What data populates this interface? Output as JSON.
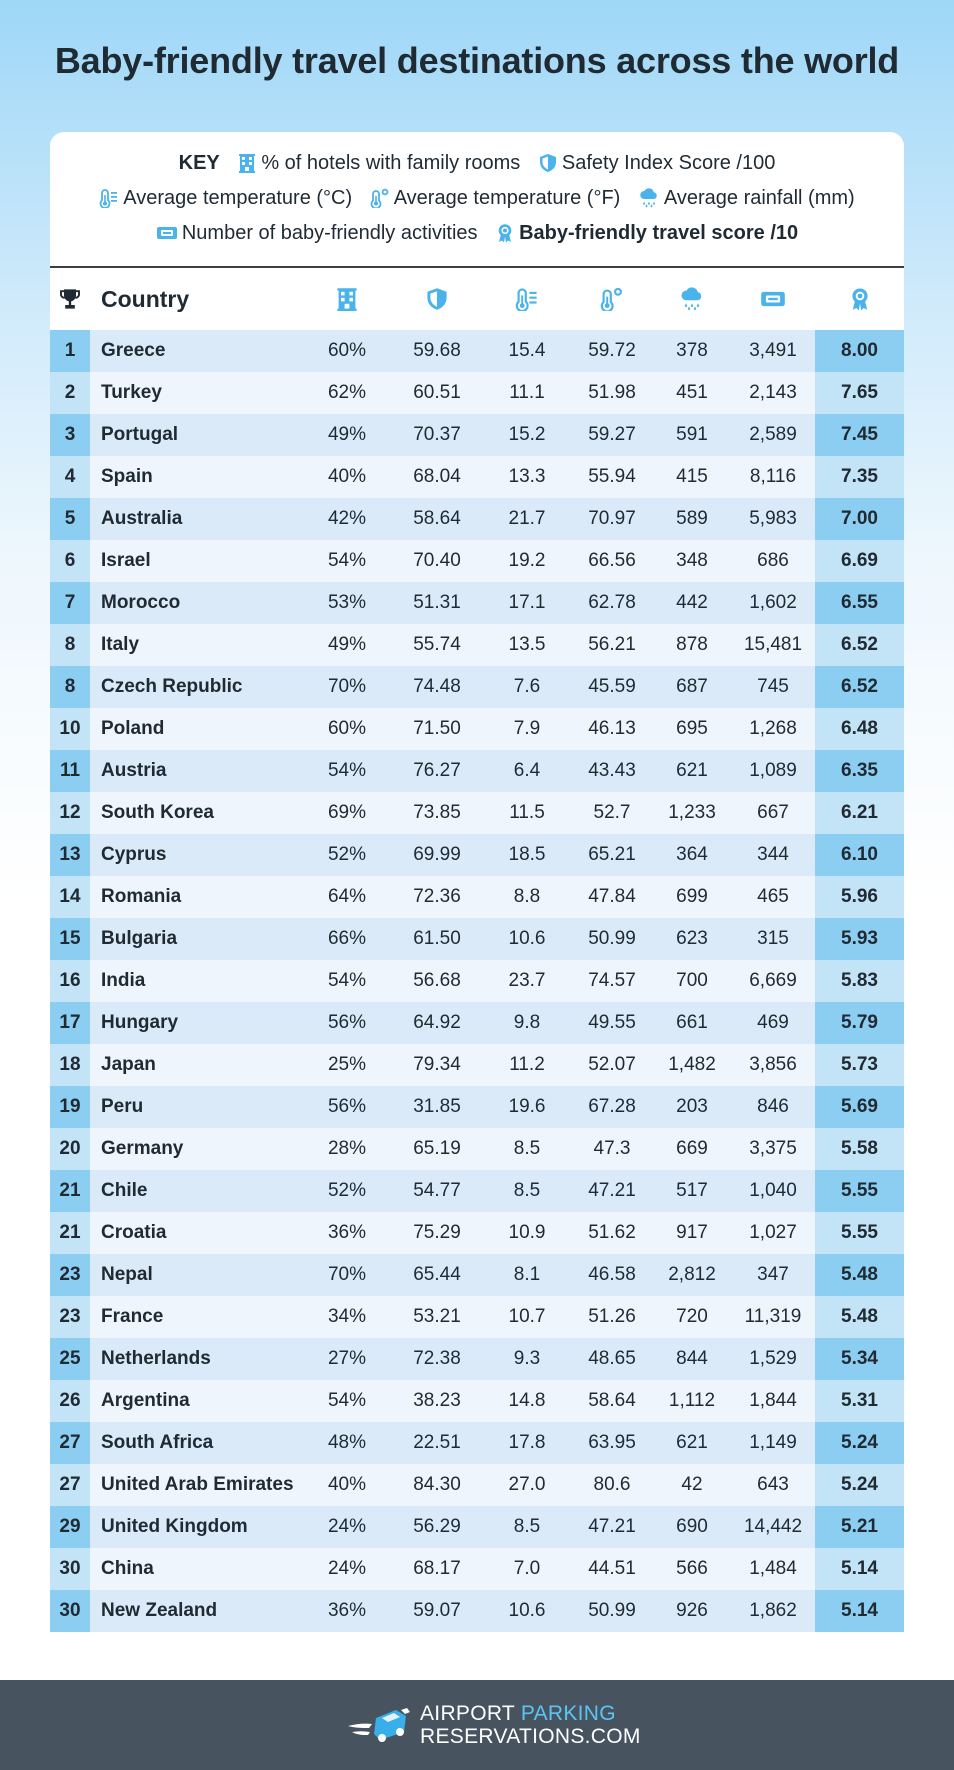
{
  "title": "Baby-friendly travel destinations across the world",
  "key": {
    "label": "KEY",
    "hotels": "% of hotels with family rooms",
    "safety": "Safety Index Score /100",
    "temp_c": "Average temperature (°C)",
    "temp_f": "Average temperature (°F)",
    "rainfall": "Average rainfall (mm)",
    "activities": "Number of baby-friendly activities",
    "score": "Baby-friendly travel score /10"
  },
  "header": {
    "country": "Country"
  },
  "colors": {
    "accent": "#4ab3ec",
    "dark": "#1f2a33",
    "footer": "#47545f"
  },
  "icons": [
    "trophy-icon",
    "hotel-icon",
    "shield-icon",
    "thermometer-c-icon",
    "thermometer-f-icon",
    "rain-cloud-icon",
    "ticket-icon",
    "award-icon"
  ],
  "footer": {
    "logo_line1_a": "AIRPORT ",
    "logo_line1_b": "PARKING",
    "logo_line2": "RESERVATIONS.COM"
  },
  "chart_data": {
    "type": "table",
    "columns": [
      "Rank",
      "Country",
      "% of hotels with family rooms",
      "Safety Index Score /100",
      "Average temperature (°C)",
      "Average temperature (°F)",
      "Average rainfall (mm)",
      "Number of baby-friendly activities",
      "Baby-friendly travel score /10"
    ],
    "rows": [
      [
        "1",
        "Greece",
        "60%",
        "59.68",
        "15.4",
        "59.72",
        "378",
        "3,491",
        "8.00"
      ],
      [
        "2",
        "Turkey",
        "62%",
        "60.51",
        "11.1",
        "51.98",
        "451",
        "2,143",
        "7.65"
      ],
      [
        "3",
        "Portugal",
        "49%",
        "70.37",
        "15.2",
        "59.27",
        "591",
        "2,589",
        "7.45"
      ],
      [
        "4",
        "Spain",
        "40%",
        "68.04",
        "13.3",
        "55.94",
        "415",
        "8,116",
        "7.35"
      ],
      [
        "5",
        "Australia",
        "42%",
        "58.64",
        "21.7",
        "70.97",
        "589",
        "5,983",
        "7.00"
      ],
      [
        "6",
        "Israel",
        "54%",
        "70.40",
        "19.2",
        "66.56",
        "348",
        "686",
        "6.69"
      ],
      [
        "7",
        "Morocco",
        "53%",
        "51.31",
        "17.1",
        "62.78",
        "442",
        "1,602",
        "6.55"
      ],
      [
        "8",
        "Italy",
        "49%",
        "55.74",
        "13.5",
        "56.21",
        "878",
        "15,481",
        "6.52"
      ],
      [
        "8",
        "Czech Republic",
        "70%",
        "74.48",
        "7.6",
        "45.59",
        "687",
        "745",
        "6.52"
      ],
      [
        "10",
        "Poland",
        "60%",
        "71.50",
        "7.9",
        "46.13",
        "695",
        "1,268",
        "6.48"
      ],
      [
        "11",
        "Austria",
        "54%",
        "76.27",
        "6.4",
        "43.43",
        "621",
        "1,089",
        "6.35"
      ],
      [
        "12",
        "South Korea",
        "69%",
        "73.85",
        "11.5",
        "52.7",
        "1,233",
        "667",
        "6.21"
      ],
      [
        "13",
        "Cyprus",
        "52%",
        "69.99",
        "18.5",
        "65.21",
        "364",
        "344",
        "6.10"
      ],
      [
        "14",
        "Romania",
        "64%",
        "72.36",
        "8.8",
        "47.84",
        "699",
        "465",
        "5.96"
      ],
      [
        "15",
        "Bulgaria",
        "66%",
        "61.50",
        "10.6",
        "50.99",
        "623",
        "315",
        "5.93"
      ],
      [
        "16",
        "India",
        "54%",
        "56.68",
        "23.7",
        "74.57",
        "700",
        "6,669",
        "5.83"
      ],
      [
        "17",
        "Hungary",
        "56%",
        "64.92",
        "9.8",
        "49.55",
        "661",
        "469",
        "5.79"
      ],
      [
        "18",
        "Japan",
        "25%",
        "79.34",
        "11.2",
        "52.07",
        "1,482",
        "3,856",
        "5.73"
      ],
      [
        "19",
        "Peru",
        "56%",
        "31.85",
        "19.6",
        "67.28",
        "203",
        "846",
        "5.69"
      ],
      [
        "20",
        "Germany",
        "28%",
        "65.19",
        "8.5",
        "47.3",
        "669",
        "3,375",
        "5.58"
      ],
      [
        "21",
        "Chile",
        "52%",
        "54.77",
        "8.5",
        "47.21",
        "517",
        "1,040",
        "5.55"
      ],
      [
        "21",
        "Croatia",
        "36%",
        "75.29",
        "10.9",
        "51.62",
        "917",
        "1,027",
        "5.55"
      ],
      [
        "23",
        "Nepal",
        "70%",
        "65.44",
        "8.1",
        "46.58",
        "2,812",
        "347",
        "5.48"
      ],
      [
        "23",
        "France",
        "34%",
        "53.21",
        "10.7",
        "51.26",
        "720",
        "11,319",
        "5.48"
      ],
      [
        "25",
        "Netherlands",
        "27%",
        "72.38",
        "9.3",
        "48.65",
        "844",
        "1,529",
        "5.34"
      ],
      [
        "26",
        "Argentina",
        "54%",
        "38.23",
        "14.8",
        "58.64",
        "1,112",
        "1,844",
        "5.31"
      ],
      [
        "27",
        "South Africa",
        "48%",
        "22.51",
        "17.8",
        "63.95",
        "621",
        "1,149",
        "5.24"
      ],
      [
        "27",
        "United Arab Emirates",
        "40%",
        "84.30",
        "27.0",
        "80.6",
        "42",
        "643",
        "5.24"
      ],
      [
        "29",
        "United Kingdom",
        "24%",
        "56.29",
        "8.5",
        "47.21",
        "690",
        "14,442",
        "5.21"
      ],
      [
        "30",
        "China",
        "24%",
        "68.17",
        "7.0",
        "44.51",
        "566",
        "1,484",
        "5.14"
      ],
      [
        "30",
        "New Zealand",
        "36%",
        "59.07",
        "10.6",
        "50.99",
        "926",
        "1,862",
        "5.14"
      ]
    ]
  }
}
